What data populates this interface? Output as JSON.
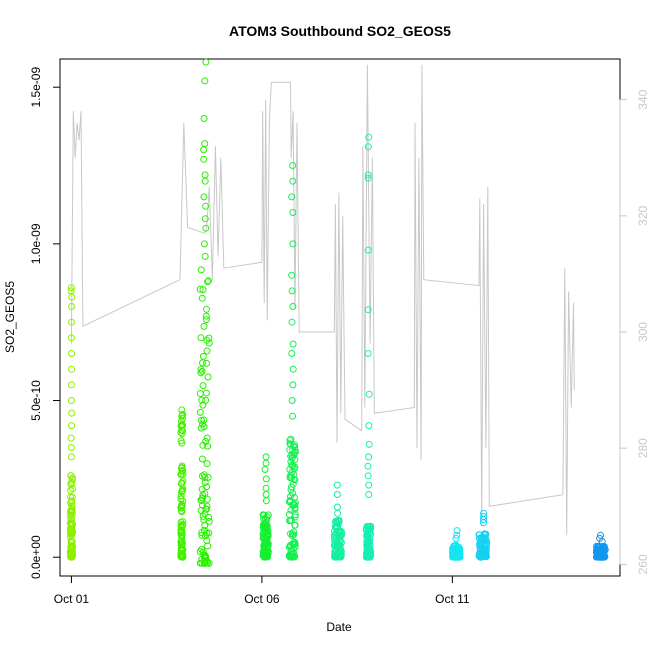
{
  "chart_data": {
    "type": "scatter",
    "title": "ATOM3 Southbound SO2_GEOS5",
    "xlabel": "Date",
    "ylabel": "SO2_GEOS5",
    "x_ticks": [
      {
        "label": "Oct 01",
        "day": 1
      },
      {
        "label": "Oct 06",
        "day": 6
      },
      {
        "label": "Oct 11",
        "day": 11
      }
    ],
    "xlim_days": [
      0.7,
      15.4
    ],
    "ylim": [
      -6e-11,
      1.59e-09
    ],
    "y_ticks": [
      {
        "label": "0.0e+00",
        "value": 0
      },
      {
        "label": "5.0e-10",
        "value": 5e-10
      },
      {
        "label": "1.0e-09",
        "value": 1e-09
      },
      {
        "label": "1.5e-09",
        "value": 1.5e-09
      }
    ],
    "y2_ticks": [
      {
        "label": "260",
        "value": 260
      },
      {
        "label": "280",
        "value": 280
      },
      {
        "label": "300",
        "value": 300
      },
      {
        "label": "320",
        "value": 320
      },
      {
        "label": "340",
        "value": 340
      }
    ],
    "y2lim": [
      258,
      347
    ],
    "grid": false,
    "legend": "none",
    "point_series": {
      "name": "SO2_GEOS5",
      "marker": "open-circle",
      "color_encoding": "time (green to blue)",
      "clusters": [
        {
          "day": 1.0,
          "low": 0,
          "dense_top": 2.8e-10,
          "peaks": [
            8.6e-10,
            8.5e-10,
            8.3e-10,
            8e-10,
            7.5e-10,
            7e-10,
            6.5e-10,
            6e-10,
            5.5e-10,
            5e-10,
            4.6e-10,
            4.2e-10,
            3.8e-10,
            3.5e-10,
            3.2e-10
          ],
          "color": "#8cf000",
          "spread": 0.03
        },
        {
          "day": 3.9,
          "low": 0,
          "dense_top": 4.6e-10,
          "peaks": [
            4.7e-10,
            4.5e-10,
            4.2e-10
          ],
          "color": "#45f000",
          "spread": 0.03
        },
        {
          "day": 4.5,
          "low": -2e-11,
          "dense_top": 9.3e-10,
          "peaks": [
            1.58e-09,
            1.52e-09,
            1.4e-09,
            1.32e-09,
            1.3e-09,
            1.27e-09,
            1.22e-09,
            1.2e-09,
            1.15e-09,
            1.12e-09,
            1.08e-09,
            1.05e-09,
            1e-09,
            9.6e-10
          ],
          "color": "#28f000",
          "spread": 0.12
        },
        {
          "day": 6.1,
          "low": 0,
          "dense_top": 1.4e-10,
          "peaks": [
            3.2e-10,
            3e-10,
            2.8e-10,
            2.5e-10,
            2.2e-10,
            2e-10,
            1.8e-10
          ],
          "color": "#14f030",
          "spread": 0.07
        },
        {
          "day": 6.8,
          "low": 0,
          "dense_top": 4e-10,
          "peaks": [
            1.25e-09,
            1.2e-09,
            1.15e-09,
            1.1e-09,
            1e-09,
            9e-10,
            8.5e-10,
            8e-10,
            7.5e-10,
            6.8e-10,
            6.5e-10,
            6e-10,
            5.5e-10,
            5e-10,
            4.5e-10
          ],
          "color": "#14f050",
          "spread": 0.08
        },
        {
          "day": 8.0,
          "low": 0,
          "dense_top": 1.2e-10,
          "peaks": [
            2.3e-10,
            2e-10,
            1.6e-10,
            1.4e-10
          ],
          "color": "#14f0a0",
          "spread": 0.1
        },
        {
          "day": 8.8,
          "low": 0,
          "dense_top": 1e-10,
          "peaks": [
            1.34e-09,
            1.31e-09,
            1.22e-09,
            1.21e-09,
            9.8e-10,
            7.9e-10,
            6.5e-10,
            5.2e-10,
            4.2e-10,
            3.6e-10,
            3.2e-10,
            2.9e-10,
            2.6e-10,
            2.3e-10,
            2e-10
          ],
          "color": "#14f0b4",
          "spread": 0.06
        },
        {
          "day": 11.1,
          "low": 0,
          "dense_top": 4e-11,
          "peaks": [
            8.5e-11,
            7e-11,
            6e-11
          ],
          "color": "#14e6f0",
          "spread": 0.1
        },
        {
          "day": 11.8,
          "low": 0,
          "dense_top": 8e-11,
          "peaks": [
            1.4e-10,
            1.3e-10,
            1.2e-10,
            1.1e-10
          ],
          "color": "#14d2f0",
          "spread": 0.1
        },
        {
          "day": 14.9,
          "low": 0,
          "dense_top": 3.5e-11,
          "peaks": [
            7e-11,
            6e-11,
            5e-11
          ],
          "color": "#1496f0",
          "spread": 0.12
        }
      ]
    },
    "line_series": {
      "name": "right-axis trace",
      "color": "#c8c8c8",
      "points": [
        [
          1.0,
          298
        ],
        [
          1.05,
          338
        ],
        [
          1.1,
          330
        ],
        [
          1.15,
          336
        ],
        [
          1.2,
          333
        ],
        [
          1.25,
          338
        ],
        [
          1.3,
          301
        ],
        [
          3.85,
          309
        ],
        [
          3.95,
          336
        ],
        [
          4.05,
          318
        ],
        [
          4.5,
          317
        ],
        [
          4.55,
          318
        ],
        [
          4.62,
          325
        ],
        [
          4.7,
          309
        ],
        [
          4.78,
          332
        ],
        [
          4.85,
          313
        ],
        [
          4.92,
          330
        ],
        [
          5.0,
          311
        ],
        [
          6.0,
          312
        ],
        [
          6.02,
          338
        ],
        [
          6.06,
          305
        ],
        [
          6.1,
          340
        ],
        [
          6.14,
          302
        ],
        [
          6.2,
          337
        ],
        [
          6.25,
          343
        ],
        [
          6.75,
          343
        ],
        [
          6.77,
          330
        ],
        [
          6.82,
          338
        ],
        [
          6.87,
          304
        ],
        [
          6.92,
          336
        ],
        [
          6.98,
          300
        ],
        [
          7.9,
          300
        ],
        [
          7.93,
          322
        ],
        [
          7.97,
          281
        ],
        [
          8.02,
          324
        ],
        [
          8.07,
          286
        ],
        [
          8.12,
          320
        ],
        [
          8.18,
          285
        ],
        [
          8.62,
          283
        ],
        [
          8.65,
          332
        ],
        [
          8.7,
          287
        ],
        [
          8.77,
          346
        ],
        [
          8.84,
          298
        ],
        [
          8.9,
          330
        ],
        [
          8.95,
          286
        ],
        [
          10.0,
          287
        ],
        [
          10.02,
          336
        ],
        [
          10.07,
          280
        ],
        [
          10.12,
          330
        ],
        [
          10.18,
          278
        ],
        [
          10.2,
          346
        ],
        [
          10.25,
          309
        ],
        [
          11.7,
          308
        ],
        [
          11.72,
          323
        ],
        [
          11.77,
          268
        ],
        [
          11.82,
          322
        ],
        [
          11.88,
          280
        ],
        [
          11.93,
          325
        ],
        [
          11.97,
          270
        ],
        [
          13.9,
          272
        ],
        [
          13.95,
          311
        ],
        [
          14.0,
          265
        ],
        [
          14.05,
          307
        ],
        [
          14.12,
          287
        ],
        [
          14.18,
          305
        ],
        [
          14.2,
          290
        ]
      ]
    }
  }
}
